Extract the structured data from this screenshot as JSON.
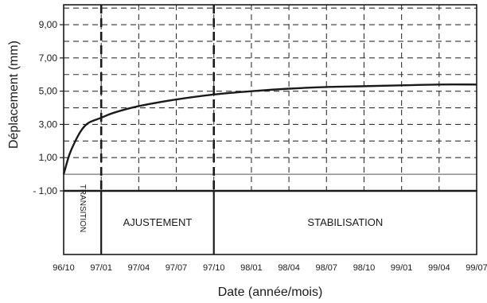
{
  "chart_data": {
    "type": "line",
    "title": "",
    "xlabel": "Date (année/mois)",
    "ylabel": "Déplacement (mm)",
    "ylim": [
      -1,
      10.2
    ],
    "xlim": [
      "1996-10",
      "1999-07"
    ],
    "grid": true,
    "y_ticks": [
      "9,00",
      "7,00",
      "5,00",
      "3,00",
      "1,00",
      "- 1,00"
    ],
    "x_ticks": [
      "96/10",
      "97/01",
      "97/04",
      "97/07",
      "97/10",
      "98/01",
      "98/04",
      "98/07",
      "98/10",
      "99/01",
      "99/04",
      "99/07"
    ],
    "series": [
      {
        "x": [
          "1996-10",
          "1996-10-15",
          "1996-11",
          "1996-11-15",
          "1996-12",
          "1997-01",
          "1997-02",
          "1997-04",
          "1997-07",
          "1997-10",
          "1998-01",
          "1998-04",
          "1998-07",
          "1998-10",
          "1999-01",
          "1999-04",
          "1999-07"
        ],
        "values": [
          0.0,
          1.2,
          2.1,
          2.7,
          3.1,
          3.4,
          3.7,
          4.1,
          4.5,
          4.8,
          5.0,
          5.15,
          5.25,
          5.3,
          5.35,
          5.4,
          5.4
        ]
      }
    ],
    "phases": [
      {
        "label": "TRANSITION",
        "start": "1996-10",
        "end": "1997-01"
      },
      {
        "label": "AJUSTEMENT",
        "start": "1997-01",
        "end": "1997-10"
      },
      {
        "label": "STABILISATION",
        "start": "1997-10",
        "end": "1999-07"
      }
    ]
  }
}
